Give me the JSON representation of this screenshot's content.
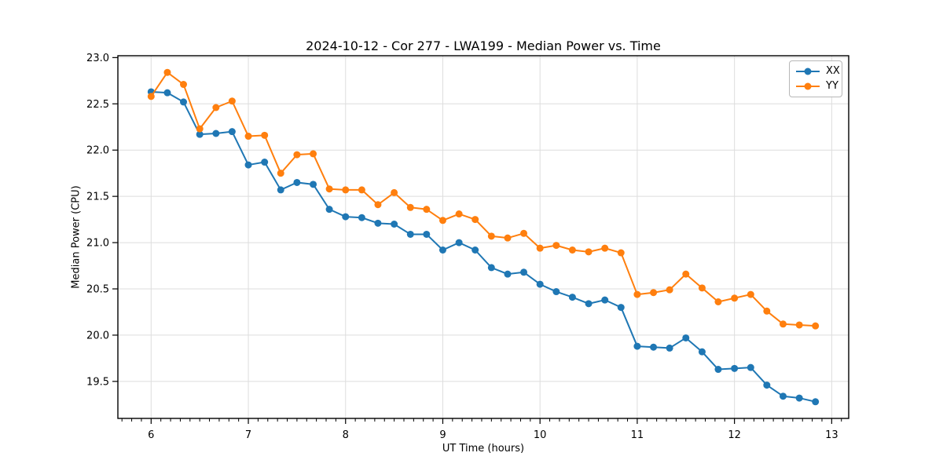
{
  "chart_data": {
    "type": "line",
    "title": "2024-10-12 - Cor 277 - LWA199 - Median Power vs. Time",
    "xlabel": "UT Time (hours)",
    "ylabel": "Median Power (CPU)",
    "x": [
      6.0,
      6.167,
      6.333,
      6.5,
      6.667,
      6.833,
      7.0,
      7.167,
      7.333,
      7.5,
      7.667,
      7.833,
      8.0,
      8.167,
      8.333,
      8.5,
      8.667,
      8.833,
      9.0,
      9.167,
      9.333,
      9.5,
      9.667,
      9.833,
      10.0,
      10.167,
      10.333,
      10.5,
      10.667,
      10.833,
      11.0,
      11.167,
      11.333,
      11.5,
      11.667,
      11.833,
      12.0,
      12.167,
      12.333,
      12.5,
      12.667,
      12.833
    ],
    "series": [
      {
        "name": "XX",
        "color": "#1f77b4",
        "marker": "circle",
        "values": [
          22.63,
          22.62,
          22.52,
          22.17,
          22.18,
          22.2,
          21.84,
          21.87,
          21.57,
          21.65,
          21.63,
          21.36,
          21.28,
          21.27,
          21.21,
          21.2,
          21.09,
          21.09,
          20.92,
          21.0,
          20.92,
          20.73,
          20.66,
          20.68,
          20.55,
          20.47,
          20.41,
          20.34,
          20.38,
          20.3,
          19.88,
          19.87,
          19.86,
          19.97,
          19.82,
          19.63,
          19.64,
          19.65,
          19.46,
          19.34,
          19.32,
          19.28
        ]
      },
      {
        "name": "YY",
        "color": "#ff7f0e",
        "marker": "circle",
        "values": [
          22.58,
          22.84,
          22.71,
          22.23,
          22.46,
          22.53,
          22.15,
          22.16,
          21.75,
          21.95,
          21.96,
          21.58,
          21.57,
          21.57,
          21.41,
          21.54,
          21.38,
          21.36,
          21.24,
          21.31,
          21.25,
          21.07,
          21.05,
          21.1,
          20.94,
          20.97,
          20.92,
          20.9,
          20.94,
          20.89,
          20.44,
          20.46,
          20.49,
          20.66,
          20.51,
          20.36,
          20.4,
          20.44,
          20.26,
          20.12,
          20.11,
          20.1
        ]
      }
    ],
    "xlim": [
      5.658,
      13.175
    ],
    "ylim": [
      19.1,
      23.02
    ],
    "xticks": [
      6,
      7,
      8,
      9,
      10,
      11,
      12,
      13
    ],
    "xtick_labels": [
      "6",
      "7",
      "8",
      "9",
      "10",
      "11",
      "12",
      "13"
    ],
    "yticks": [
      19.5,
      20.0,
      20.5,
      21.0,
      21.5,
      22.0,
      22.5,
      23.0
    ],
    "ytick_labels": [
      "19.5",
      "20.0",
      "20.5",
      "21.0",
      "21.5",
      "22.0",
      "22.5",
      "23.0"
    ],
    "x_minor_tick_step": 0.1,
    "grid": true,
    "grid_color": "#dddddd",
    "legend_position": "upper right"
  }
}
